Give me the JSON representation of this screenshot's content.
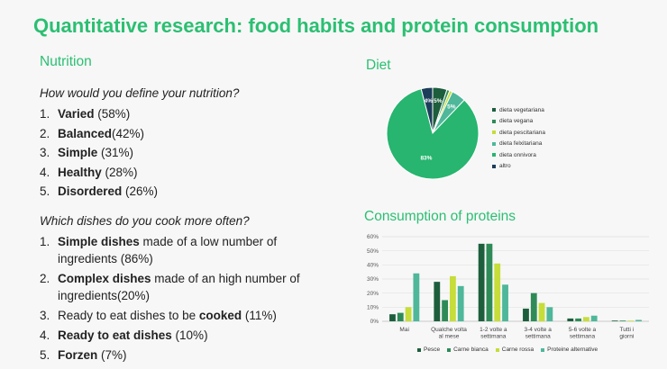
{
  "page_title": "Quantitative research: food habits and protein consumption",
  "nutrition": {
    "heading": "Nutrition",
    "question": "How would you define your nutrition?",
    "items": [
      {
        "num": "1.",
        "bold": "Varied",
        "rest": " (58%)"
      },
      {
        "num": "2.",
        "bold": "Balanced",
        "rest": "(42%)"
      },
      {
        "num": "3.",
        "bold": "Simple",
        "rest": " (31%)"
      },
      {
        "num": "4.",
        "bold": "Healthy",
        "rest": " (28%)"
      },
      {
        "num": "5.",
        "bold": "Disordered",
        "rest": " (26%)"
      }
    ]
  },
  "dishes": {
    "question": "Which dishes do you cook more often?",
    "items": [
      {
        "num": "1.",
        "pre": "",
        "bold": "Simple dishes",
        "post": " made of a low number of ingredients (86%)"
      },
      {
        "num": "2.",
        "pre": "",
        "bold": "Complex dishes",
        "post": " made of an high number of ingredients(20%)"
      },
      {
        "num": "3.",
        "pre": "Ready to eat dishes to be ",
        "bold": "cooked",
        "post": " (11%)"
      },
      {
        "num": "4.",
        "pre": "",
        "bold": "Ready to eat dishes",
        "post": " (10%)"
      },
      {
        "num": "5.",
        "pre": "",
        "bold": "Forzen",
        "post": " (7%)"
      }
    ]
  },
  "diet": {
    "heading": "Diet"
  },
  "proteins": {
    "heading": "Consumption of proteins"
  },
  "colors": {
    "accent": "#2bbf72",
    "dark_green": "#1d5e3c",
    "green": "#2e8b57",
    "yellow": "#c6dd3a",
    "teal": "#4fb79a",
    "sea": "#27b56f",
    "navy": "#1c3e5a"
  },
  "chart_data": [
    {
      "type": "pie",
      "categories": [
        "dieta vegetariana",
        "dieta vegana",
        "dieta pescitariana",
        "dieta felxitariana",
        "dieta onnivora",
        "altro"
      ],
      "values": [
        5,
        1,
        1,
        5,
        83,
        4
      ],
      "data_labels": [
        "5%",
        "",
        "",
        "5%",
        "83%",
        "4%"
      ],
      "colors": [
        "#1d5e3c",
        "#2e8b57",
        "#c6dd3a",
        "#4fb79a",
        "#27b56f",
        "#1c3e5a"
      ],
      "legend": "right"
    },
    {
      "type": "bar",
      "categories": [
        "Mai",
        "Qualche volta al mese",
        "1-2 volte a settimana",
        "3-4 volte a settimana",
        "5-6 volte a settimana",
        "Tutti i giorni"
      ],
      "series": [
        {
          "name": "Pesce",
          "values": [
            5,
            28,
            55,
            9,
            2,
            0.5
          ],
          "color": "#1d5e3c"
        },
        {
          "name": "Carne bianca",
          "values": [
            6,
            15,
            55,
            20,
            2,
            0.5
          ],
          "color": "#2e8b57"
        },
        {
          "name": "Carne rossa",
          "values": [
            10,
            32,
            41,
            13,
            3,
            0.5
          ],
          "color": "#c6dd3a"
        },
        {
          "name": "Proteine alternative",
          "values": [
            34,
            25,
            26,
            10,
            4,
            1
          ],
          "color": "#4fb79a"
        }
      ],
      "yticks": [
        "0%",
        "10%",
        "20%",
        "30%",
        "40%",
        "50%",
        "60%"
      ],
      "ylim": [
        0,
        60
      ],
      "grid": true,
      "legend": "bottom"
    }
  ]
}
